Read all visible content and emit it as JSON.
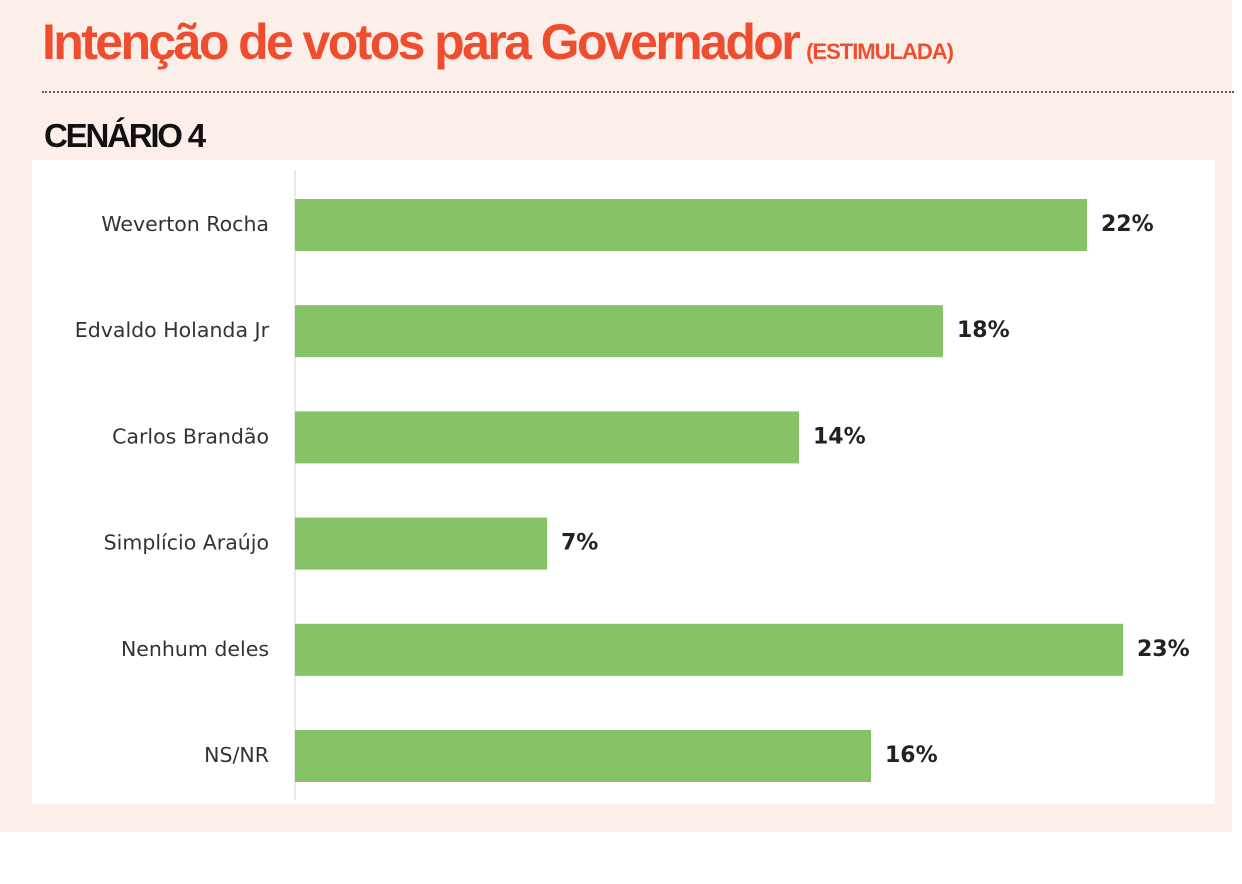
{
  "title": "Intenção de votos para Governador",
  "subtitle": "(ESTIMULADA)",
  "scenario": "CENÁRIO 4",
  "colors": {
    "title": "#ee4e2f",
    "bar": "#86c266",
    "background": "#fcefe9"
  },
  "chart_data": {
    "type": "bar",
    "orientation": "horizontal",
    "categories": [
      "Weverton Rocha",
      "Edvaldo Holanda Jr",
      "Carlos Brandão",
      "Simplício Araújo",
      "Nenhum deles",
      "NS/NR"
    ],
    "values": [
      22,
      18,
      14,
      7,
      23,
      16
    ],
    "data_labels": [
      "22%",
      "18%",
      "14%",
      "7%",
      "23%",
      "16%"
    ],
    "unit": "%",
    "xlim": [
      0,
      23
    ],
    "grid": false,
    "legend": "none"
  }
}
